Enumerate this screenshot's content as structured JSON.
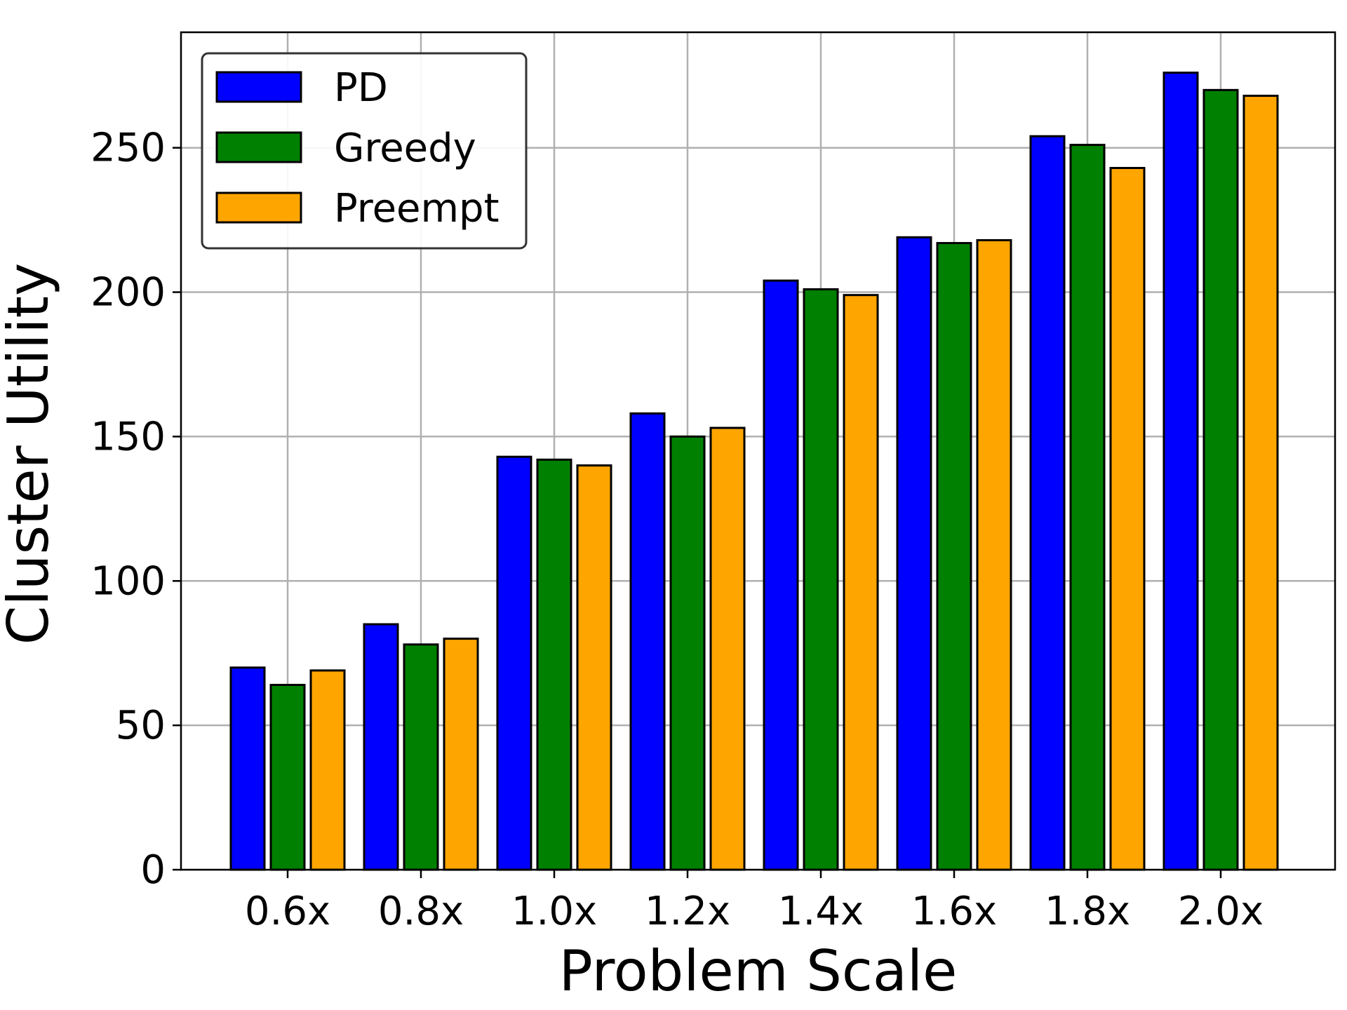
{
  "chart_data": {
    "type": "bar",
    "title": "",
    "xlabel": "Problem Scale",
    "ylabel": "Cluster Utility",
    "categories": [
      "0.6x",
      "0.8x",
      "1.0x",
      "1.2x",
      "1.4x",
      "1.6x",
      "1.8x",
      "2.0x"
    ],
    "series": [
      {
        "name": "PD",
        "color": "#0000ff",
        "values": [
          70,
          85,
          143,
          158,
          204,
          219,
          254,
          276
        ]
      },
      {
        "name": "Greedy",
        "color": "#008000",
        "values": [
          64,
          78,
          142,
          150,
          201,
          217,
          251,
          270
        ]
      },
      {
        "name": "Preempt",
        "color": "#ffa500",
        "values": [
          69,
          80,
          140,
          153,
          199,
          218,
          243,
          268
        ]
      }
    ],
    "ylim": [
      0,
      290
    ],
    "yticks": [
      0,
      50,
      100,
      150,
      200,
      250
    ],
    "grid": true,
    "legend_position": "top-left"
  }
}
